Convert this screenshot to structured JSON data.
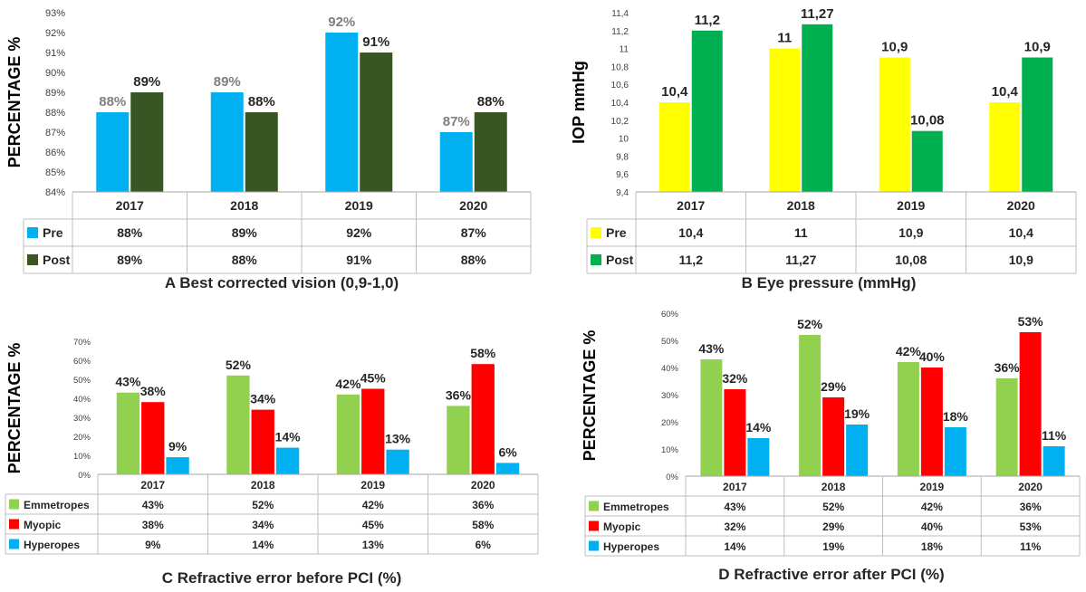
{
  "colors": {
    "pre": "#00B0F0",
    "post": "#375623",
    "pre_iop": "#FFFF00",
    "post_iop": "#00B050",
    "emmetropes": "#92D050",
    "myopic": "#FF0000",
    "hyperopes": "#00B0F0"
  },
  "chart_data": [
    {
      "id": "a",
      "type": "bar",
      "caption": "A  Best corrected vision (0,9-1,0)",
      "ylabel": "PERCENTAGE %",
      "categories": [
        "2017",
        "2018",
        "2019",
        "2020"
      ],
      "ylim": [
        84,
        93
      ],
      "yticks": [
        "84%",
        "85%",
        "86%",
        "87%",
        "88%",
        "89%",
        "90%",
        "91%",
        "92%",
        "93%"
      ],
      "tick_values": [
        84,
        85,
        86,
        87,
        88,
        89,
        90,
        91,
        92,
        93
      ],
      "series": [
        {
          "name": "Pre",
          "color": "#00B0F0",
          "values": [
            88,
            89,
            92,
            87
          ],
          "labels": [
            "88%",
            "89%",
            "92%",
            "87%"
          ]
        },
        {
          "name": "Post",
          "color": "#375623",
          "values": [
            89,
            88,
            91,
            88
          ],
          "labels": [
            "89%",
            "88%",
            "91%",
            "88%"
          ]
        }
      ]
    },
    {
      "id": "b",
      "type": "bar",
      "caption": "B  Eye pressure (mmHg)",
      "ylabel": "IOP  mmHg",
      "categories": [
        "2017",
        "2018",
        "2019",
        "2020"
      ],
      "ylim": [
        9.4,
        11.4
      ],
      "yticks": [
        "9,4",
        "9,6",
        "9,8",
        "10",
        "10,2",
        "10,4",
        "10,6",
        "10,8",
        "11",
        "11,2",
        "11,4"
      ],
      "tick_values": [
        9.4,
        9.6,
        9.8,
        10,
        10.2,
        10.4,
        10.6,
        10.8,
        11,
        11.2,
        11.4
      ],
      "series": [
        {
          "name": "Pre",
          "color": "#FFFF00",
          "values": [
            10.4,
            11,
            10.9,
            10.4
          ],
          "labels": [
            "10,4",
            "11",
            "10,9",
            "10,4"
          ]
        },
        {
          "name": "Post",
          "color": "#00B050",
          "values": [
            11.2,
            11.27,
            10.08,
            10.9
          ],
          "labels": [
            "11,2",
            "11,27",
            "10,08",
            "10,9"
          ]
        }
      ]
    },
    {
      "id": "c",
      "type": "bar",
      "caption": "C  Refractive error before PCI (%)",
      "ylabel": "PERCENTAGE %",
      "categories": [
        "2017",
        "2018",
        "2019",
        "2020"
      ],
      "ylim": [
        0,
        70
      ],
      "yticks": [
        "0%",
        "10%",
        "20%",
        "30%",
        "40%",
        "50%",
        "60%",
        "70%"
      ],
      "tick_values": [
        0,
        10,
        20,
        30,
        40,
        50,
        60,
        70
      ],
      "series": [
        {
          "name": "Emmetropes",
          "color": "#92D050",
          "values": [
            43,
            52,
            42,
            36
          ],
          "labels": [
            "43%",
            "52%",
            "42%",
            "36%"
          ]
        },
        {
          "name": "Myopic",
          "color": "#FF0000",
          "values": [
            38,
            34,
            45,
            58
          ],
          "labels": [
            "38%",
            "34%",
            "45%",
            "58%"
          ]
        },
        {
          "name": "Hyperopes",
          "color": "#00B0F0",
          "values": [
            9,
            14,
            13,
            6
          ],
          "labels": [
            "9%",
            "14%",
            "13%",
            "6%"
          ]
        }
      ]
    },
    {
      "id": "d",
      "type": "bar",
      "caption": "D  Refractive error after PCI (%)",
      "ylabel": "PERCENTAGE %",
      "categories": [
        "2017",
        "2018",
        "2019",
        "2020"
      ],
      "ylim": [
        0,
        60
      ],
      "yticks": [
        "0%",
        "10%",
        "20%",
        "30%",
        "40%",
        "50%",
        "60%"
      ],
      "tick_values": [
        0,
        10,
        20,
        30,
        40,
        50,
        60
      ],
      "series": [
        {
          "name": "Emmetropes",
          "color": "#92D050",
          "values": [
            43,
            52,
            42,
            36
          ],
          "labels": [
            "43%",
            "52%",
            "42%",
            "36%"
          ]
        },
        {
          "name": "Myopic",
          "color": "#FF0000",
          "values": [
            32,
            29,
            40,
            53
          ],
          "labels": [
            "32%",
            "29%",
            "40%",
            "53%"
          ]
        },
        {
          "name": "Hyperopes",
          "color": "#00B0F0",
          "values": [
            14,
            19,
            18,
            11
          ],
          "labels": [
            "14%",
            "19%",
            "18%",
            "11%"
          ]
        }
      ]
    }
  ]
}
